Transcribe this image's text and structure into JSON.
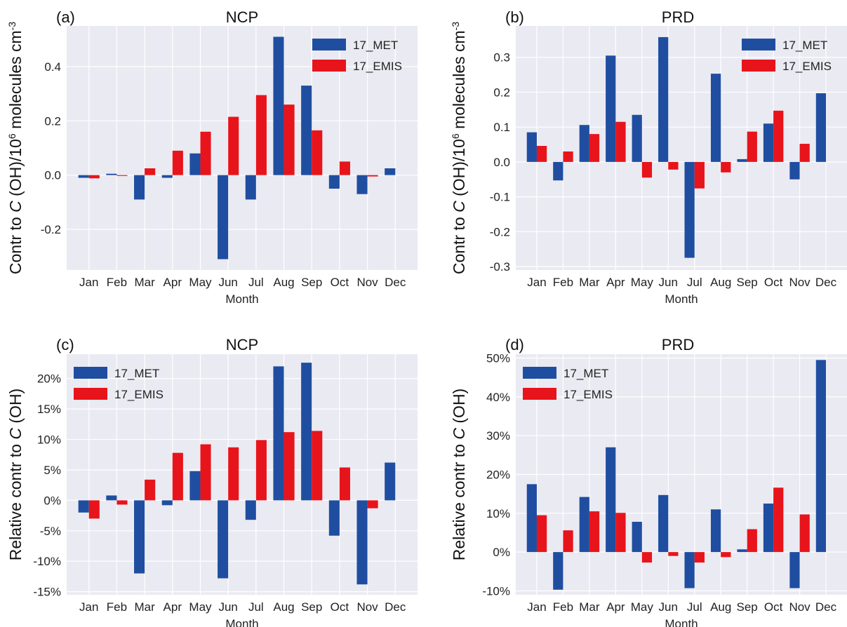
{
  "colors": {
    "met": "#1f4ea1",
    "emis": "#e8141b",
    "panel_bg": "#eaeaf2",
    "grid": "#ffffff"
  },
  "chart_data": [
    {
      "panel": "(a)",
      "title": "NCP",
      "type": "bar",
      "xlabel": "Month",
      "ylabel_parts": [
        "Contr to ",
        "C",
        " (OH)/10",
        "6",
        " molecules cm",
        "-3"
      ],
      "categories": [
        "Jan",
        "Feb",
        "Mar",
        "Apr",
        "May",
        "Jun",
        "Jul",
        "Aug",
        "Sep",
        "Oct",
        "Nov",
        "Dec"
      ],
      "ylim": [
        -0.35,
        0.55
      ],
      "yticks": [
        -0.2,
        0.0,
        0.2,
        0.4
      ],
      "ytick_labels": [
        "-0.2",
        "0.0",
        "0.2",
        "0.4"
      ],
      "legend": "top-right",
      "series": [
        {
          "name": "17_MET",
          "values": [
            -0.01,
            0.005,
            -0.09,
            -0.01,
            0.08,
            -0.31,
            -0.09,
            0.51,
            0.33,
            -0.05,
            -0.07,
            0.025
          ]
        },
        {
          "name": "17_EMIS",
          "values": [
            -0.012,
            -0.003,
            0.025,
            0.09,
            0.16,
            0.215,
            0.295,
            0.26,
            0.165,
            0.05,
            -0.005,
            0.0
          ]
        }
      ]
    },
    {
      "panel": "(b)",
      "title": "PRD",
      "type": "bar",
      "xlabel": "Month",
      "ylabel_parts": [
        "Contr to ",
        "C",
        " (OH)/10",
        "6",
        " molecules cm",
        "-3"
      ],
      "categories": [
        "Jan",
        "Feb",
        "Mar",
        "Apr",
        "May",
        "Jun",
        "Jul",
        "Aug",
        "Sep",
        "Oct",
        "Nov",
        "Dec"
      ],
      "ylim": [
        -0.31,
        0.39
      ],
      "yticks": [
        -0.3,
        -0.2,
        -0.1,
        0.0,
        0.1,
        0.2,
        0.3
      ],
      "ytick_labels": [
        "-0.3",
        "-0.2",
        "-0.1",
        "0.0",
        "0.1",
        "0.2",
        "0.3"
      ],
      "legend": "top-right",
      "series": [
        {
          "name": "17_MET",
          "values": [
            0.085,
            -0.053,
            0.106,
            0.305,
            0.135,
            0.358,
            -0.275,
            0.253,
            0.008,
            0.11,
            -0.05,
            0.197
          ]
        },
        {
          "name": "17_EMIS",
          "values": [
            0.046,
            0.03,
            0.08,
            0.115,
            -0.045,
            -0.022,
            -0.076,
            -0.03,
            0.087,
            0.147,
            0.052,
            0.0
          ]
        }
      ]
    },
    {
      "panel": "(c)",
      "title": "NCP",
      "type": "bar",
      "xlabel": "Month",
      "ylabel_parts": [
        "Relative contr to ",
        "C",
        " (OH)"
      ],
      "categories": [
        "Jan",
        "Feb",
        "Mar",
        "Apr",
        "May",
        "Jun",
        "Jul",
        "Aug",
        "Sep",
        "Oct",
        "Nov",
        "Dec"
      ],
      "ylim": [
        -15.5,
        24
      ],
      "yticks": [
        -15,
        -10,
        -5,
        0,
        5,
        10,
        15,
        20
      ],
      "ytick_labels": [
        "-15%",
        "-10%",
        "-5%",
        "0%",
        "5%",
        "10%",
        "15%",
        "20%"
      ],
      "legend": "top-left",
      "series": [
        {
          "name": "17_MET",
          "values": [
            -2.0,
            0.8,
            -12.0,
            -0.8,
            4.8,
            -12.8,
            -3.2,
            22.0,
            22.6,
            -5.8,
            -13.8,
            6.2
          ]
        },
        {
          "name": "17_EMIS",
          "values": [
            -3.0,
            -0.7,
            3.4,
            7.8,
            9.2,
            8.7,
            9.9,
            11.2,
            11.4,
            5.4,
            -1.3,
            0.0
          ]
        }
      ]
    },
    {
      "panel": "(d)",
      "title": "PRD",
      "type": "bar",
      "xlabel": "Month",
      "ylabel_parts": [
        "Relative contr to ",
        "C",
        " (OH)"
      ],
      "categories": [
        "Jan",
        "Feb",
        "Mar",
        "Apr",
        "May",
        "Jun",
        "Jul",
        "Aug",
        "Sep",
        "Oct",
        "Nov",
        "Dec"
      ],
      "ylim": [
        -11,
        51
      ],
      "yticks": [
        -10,
        0,
        10,
        20,
        30,
        40,
        50
      ],
      "ytick_labels": [
        "-10%",
        "0%",
        "10%",
        "20%",
        "30%",
        "40%",
        "50%"
      ],
      "legend": "top-left",
      "series": [
        {
          "name": "17_MET",
          "values": [
            17.5,
            -9.7,
            14.2,
            27.0,
            7.8,
            14.7,
            -9.3,
            11.0,
            0.7,
            12.5,
            -9.3,
            49.5
          ]
        },
        {
          "name": "17_EMIS",
          "values": [
            9.5,
            5.6,
            10.5,
            10.1,
            -2.7,
            -1.0,
            -2.7,
            -1.3,
            5.9,
            16.6,
            9.7,
            0.0
          ]
        }
      ]
    }
  ]
}
